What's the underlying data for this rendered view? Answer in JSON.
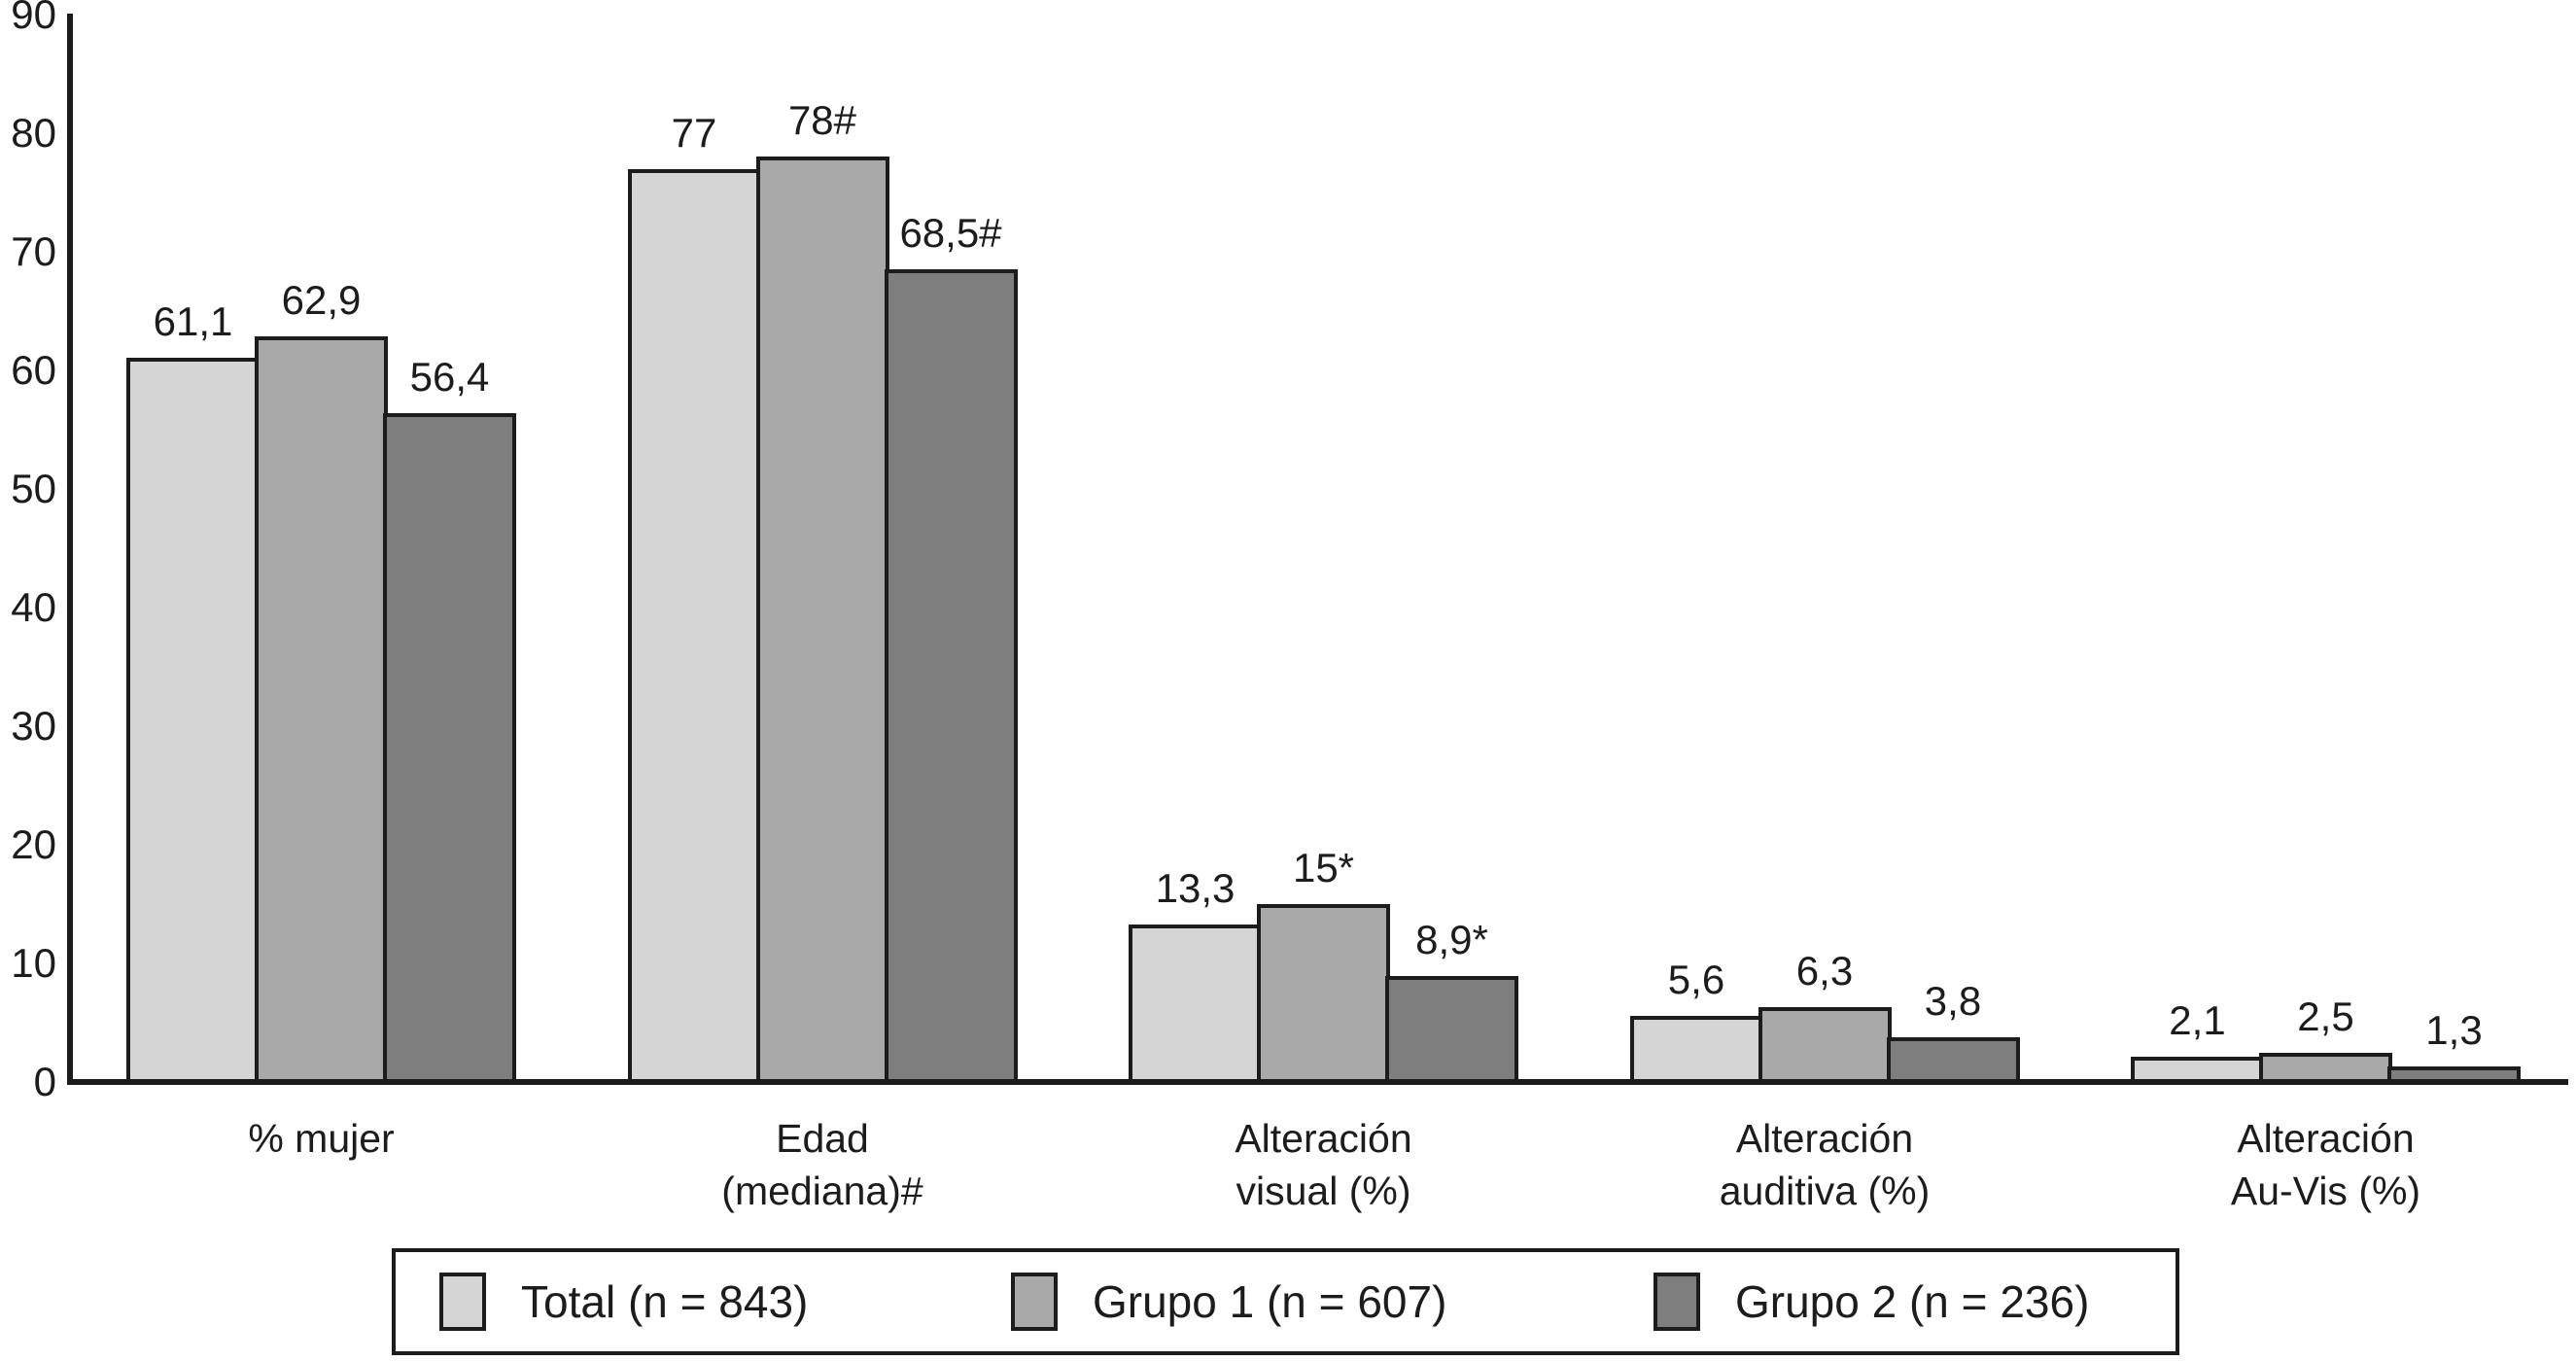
{
  "figure": {
    "background": "#ffffff",
    "ink_color": "#1c1c1c"
  },
  "chart_data": {
    "type": "bar",
    "title": "",
    "xlabel": "",
    "ylabel": "",
    "ylim": [
      0,
      90
    ],
    "yticks": [
      0,
      10,
      20,
      30,
      40,
      50,
      60,
      70,
      80,
      90
    ],
    "grid": false,
    "legend_position": "bottom",
    "bar_border_color": "#1c1c1c",
    "categories": [
      {
        "label_lines": [
          "% mujer"
        ]
      },
      {
        "label_lines": [
          "Edad",
          "(mediana)#"
        ]
      },
      {
        "label_lines": [
          "Alteración",
          "visual (%)"
        ]
      },
      {
        "label_lines": [
          "Alteración",
          "auditiva (%)"
        ]
      },
      {
        "label_lines": [
          "Alteración",
          "Au-Vis (%)"
        ]
      }
    ],
    "series": [
      {
        "key": "total",
        "name": "Total (n = 843)",
        "color": "#d5d5d5",
        "values": [
          61.1,
          77,
          13.3,
          5.6,
          2.1
        ],
        "value_labels": [
          "61,1",
          "77",
          "13,3",
          "5,6",
          "2,1"
        ]
      },
      {
        "key": "grupo1",
        "name": "Grupo 1 (n = 607)",
        "color": "#a9a9a9",
        "values": [
          62.9,
          78,
          15,
          6.3,
          2.5
        ],
        "value_labels": [
          "62,9",
          "78#",
          "15*",
          "6,3",
          "2,5"
        ]
      },
      {
        "key": "grupo2",
        "name": "Grupo 2 (n = 236)",
        "color": "#7e7e7e",
        "values": [
          56.4,
          68.5,
          8.9,
          3.8,
          1.3
        ],
        "value_labels": [
          "56,4",
          "68,5#",
          "8,9*",
          "3,8",
          "1,3"
        ]
      }
    ]
  },
  "legend": {
    "items": [
      {
        "label": "Total (n = 843)",
        "color": "#d5d5d5"
      },
      {
        "label": "Grupo 1 (n = 607)",
        "color": "#a9a9a9"
      },
      {
        "label": "Grupo 2 (n = 236)",
        "color": "#7e7e7e"
      }
    ]
  }
}
